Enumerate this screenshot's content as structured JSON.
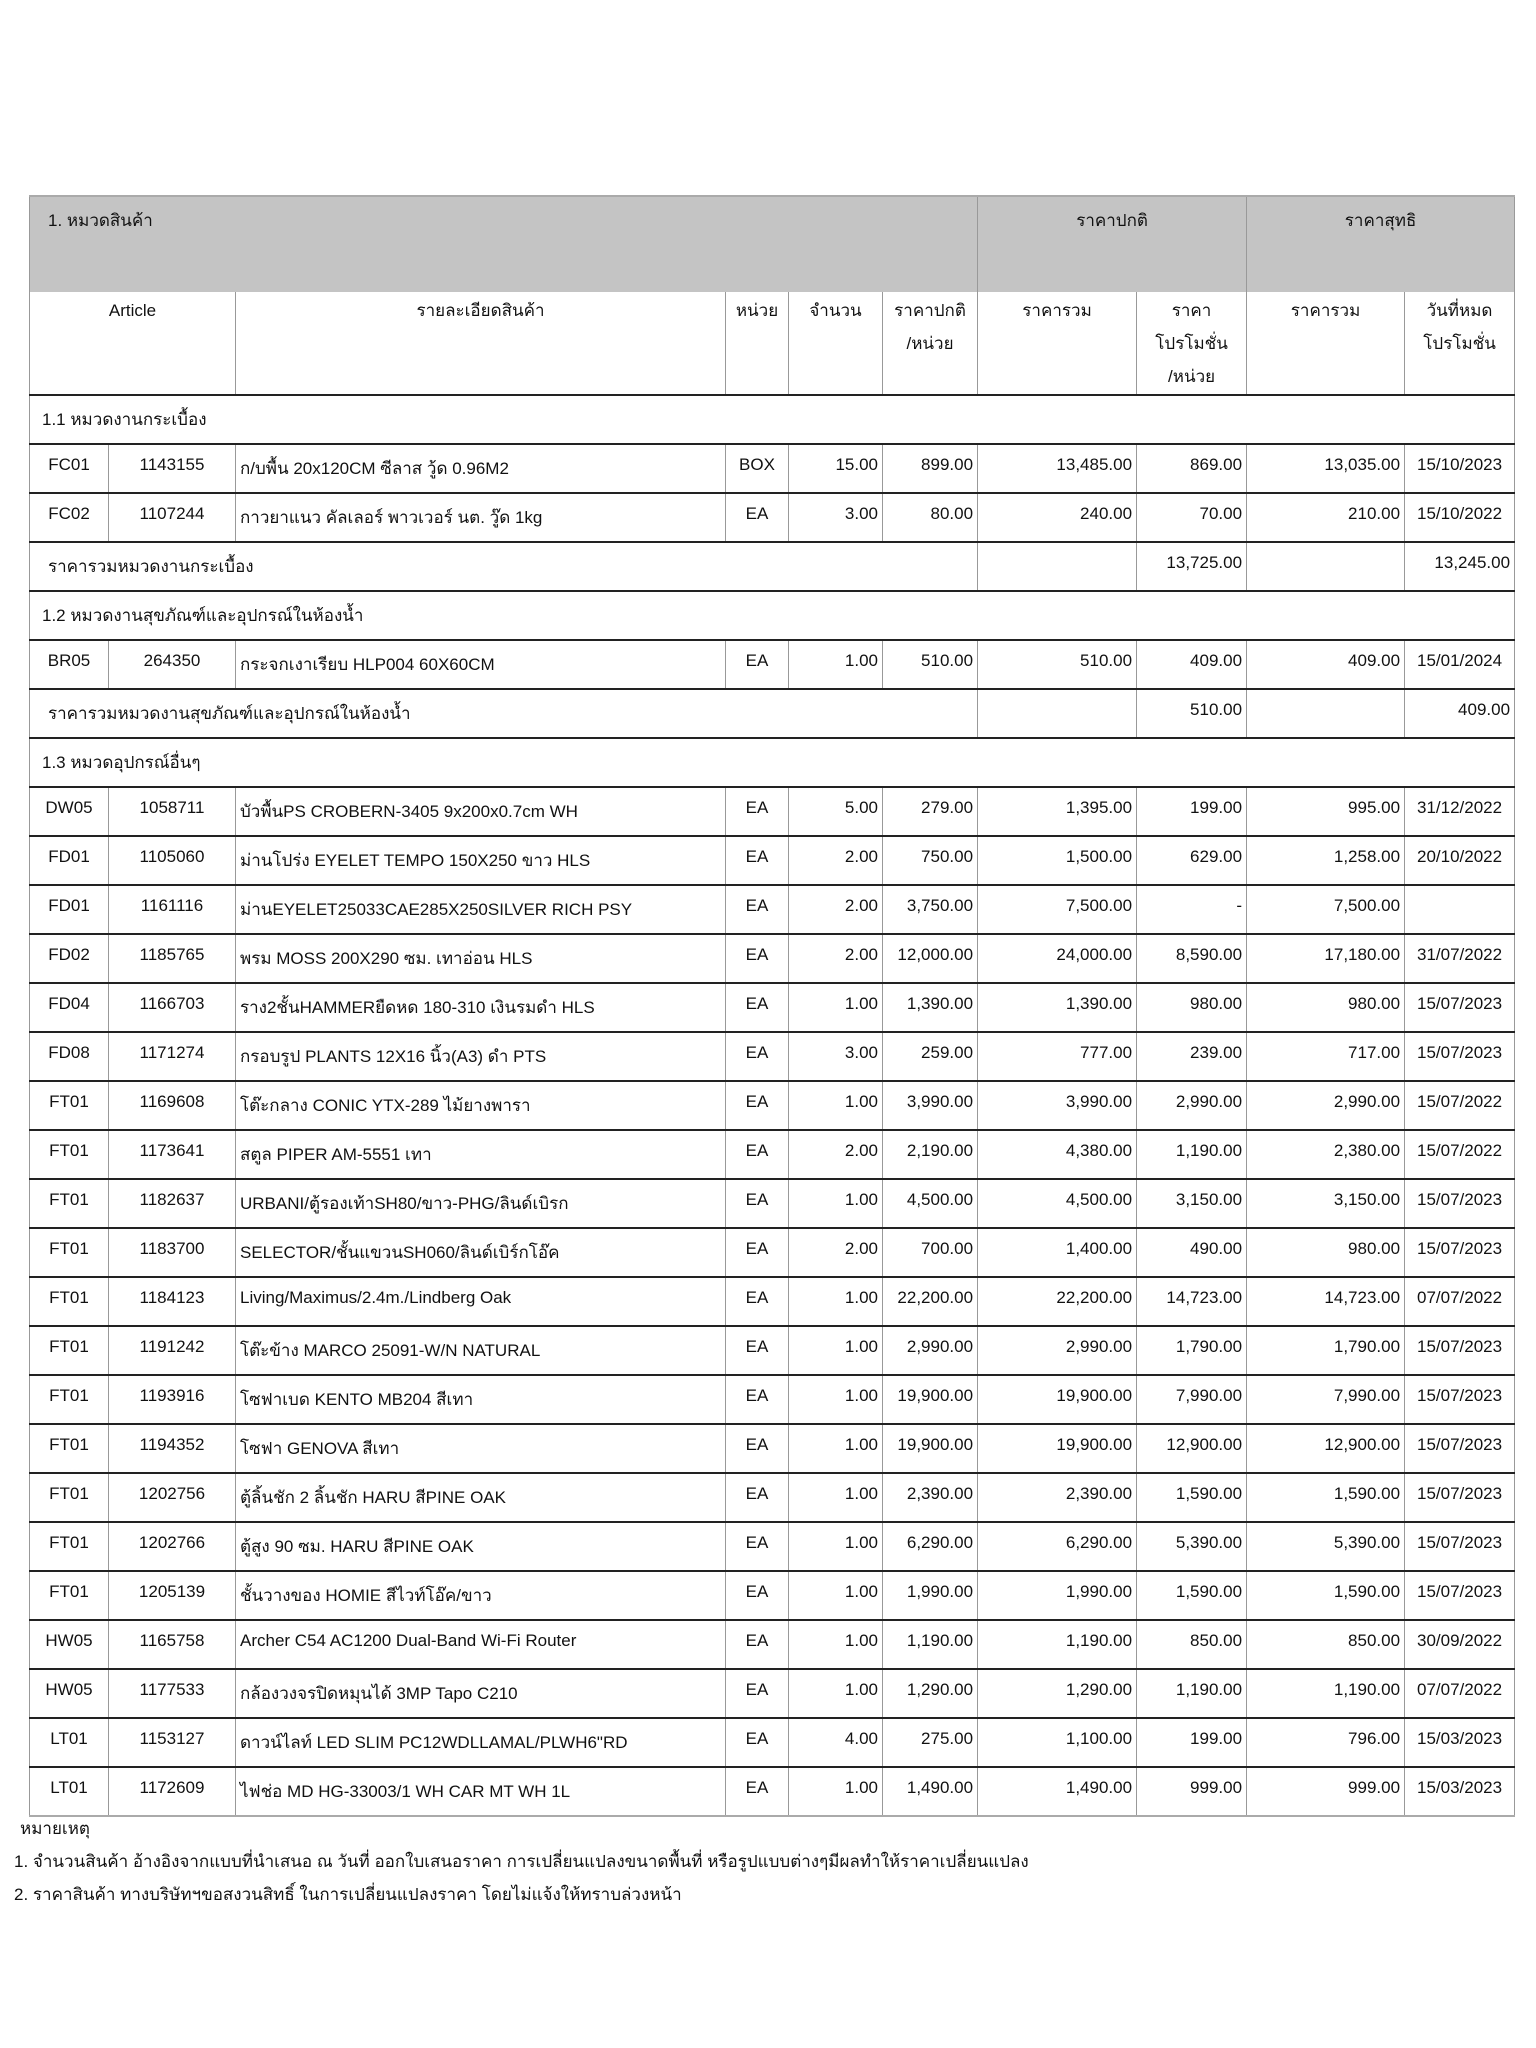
{
  "header": {
    "category_title": "1. หมวดสินค้า",
    "regular_price_group": "ราคาปกติ",
    "net_price_group": "ราคาสุทธิ"
  },
  "columns": {
    "article": "Article",
    "description": "รายละเอียดสินค้า",
    "unit": "หน่วย",
    "qty": "จำนวน",
    "unit_price": [
      "ราคาปกติ",
      "/หน่วย"
    ],
    "total": "ราคารวม",
    "promo_price": [
      "ราคา",
      "โปรโมชั่น",
      "/หน่วย"
    ],
    "net_total": "ราคารวม",
    "promo_end": [
      "วันที่หมด",
      "โปรโมชั่น"
    ]
  },
  "sections": [
    {
      "title": "1.1 หมวดงานกระเบื้อง",
      "items": [
        [
          "FC01",
          "1143155",
          "ก/บพื้น 20x120CM ซีลาส วู้ด 0.96M2",
          "BOX",
          "15.00",
          "899.00",
          "13,485.00",
          "869.00",
          "13,035.00",
          "15/10/2023"
        ],
        [
          "FC02",
          "1107244",
          "กาวยาแนว คัลเลอร์ พาวเวอร์ นต. วู๊ด 1kg",
          "EA",
          "3.00",
          "80.00",
          "240.00",
          "70.00",
          "210.00",
          "15/10/2022"
        ]
      ],
      "subtotal": {
        "label": "ราคารวมหมวดงานกระเบื้อง",
        "total": "13,725.00",
        "net_total": "13,245.00"
      }
    },
    {
      "title": "1.2 หมวดงานสุขภัณฑ์และอุปกรณ์ในห้องน้ำ",
      "items": [
        [
          "BR05",
          "264350",
          "กระจกเงาเรียบ HLP004 60X60CM",
          "EA",
          "1.00",
          "510.00",
          "510.00",
          "409.00",
          "409.00",
          "15/01/2024"
        ]
      ],
      "subtotal": {
        "label": "ราคารวมหมวดงานสุขภัณฑ์และอุปกรณ์ในห้องน้ำ",
        "total": "510.00",
        "net_total": "409.00"
      }
    },
    {
      "title": "1.3 หมวดอุปกรณ์อื่นๆ",
      "items": [
        [
          "DW05",
          "1058711",
          "บัวพื้นPS CROBERN-3405 9x200x0.7cm WH",
          "EA",
          "5.00",
          "279.00",
          "1,395.00",
          "199.00",
          "995.00",
          "31/12/2022"
        ],
        [
          "FD01",
          "1105060",
          "ม่านโปร่ง EYELET TEMPO 150X250 ขาว HLS",
          "EA",
          "2.00",
          "750.00",
          "1,500.00",
          "629.00",
          "1,258.00",
          "20/10/2022"
        ],
        [
          "FD01",
          "1161116",
          "ม่านEYELET25033CAE285X250SILVER RICH PSY",
          "EA",
          "2.00",
          "3,750.00",
          "7,500.00",
          "-",
          "7,500.00",
          ""
        ],
        [
          "FD02",
          "1185765",
          "พรม MOSS 200X290 ซม. เทาอ่อน HLS",
          "EA",
          "2.00",
          "12,000.00",
          "24,000.00",
          "8,590.00",
          "17,180.00",
          "31/07/2022"
        ],
        [
          "FD04",
          "1166703",
          "ราง2ชั้นHAMMERยืดหด 180-310 เงินรมดำ HLS",
          "EA",
          "1.00",
          "1,390.00",
          "1,390.00",
          "980.00",
          "980.00",
          "15/07/2023"
        ],
        [
          "FD08",
          "1171274",
          "กรอบรูป PLANTS 12X16 นิ้ว(A3) ดำ PTS",
          "EA",
          "3.00",
          "259.00",
          "777.00",
          "239.00",
          "717.00",
          "15/07/2023"
        ],
        [
          "FT01",
          "1169608",
          "โต๊ะกลาง CONIC YTX-289 ไม้ยางพารา",
          "EA",
          "1.00",
          "3,990.00",
          "3,990.00",
          "2,990.00",
          "2,990.00",
          "15/07/2022"
        ],
        [
          "FT01",
          "1173641",
          "สตูล PIPER AM-5551 เทา",
          "EA",
          "2.00",
          "2,190.00",
          "4,380.00",
          "1,190.00",
          "2,380.00",
          "15/07/2022"
        ],
        [
          "FT01",
          "1182637",
          "URBANI/ตู้รองเท้าSH80/ขาว-PHG/ลินด์เบิรก",
          "EA",
          "1.00",
          "4,500.00",
          "4,500.00",
          "3,150.00",
          "3,150.00",
          "15/07/2023"
        ],
        [
          "FT01",
          "1183700",
          "SELECTOR/ชั้นแขวนSH060/ลินด์เบิร์กโอ๊ค",
          "EA",
          "2.00",
          "700.00",
          "1,400.00",
          "490.00",
          "980.00",
          "15/07/2023"
        ],
        [
          "FT01",
          "1184123",
          "Living/Maximus/2.4m./Lindberg Oak",
          "EA",
          "1.00",
          "22,200.00",
          "22,200.00",
          "14,723.00",
          "14,723.00",
          "07/07/2022"
        ],
        [
          "FT01",
          "1191242",
          "โต๊ะข้าง MARCO 25091-W/N  NATURAL",
          "EA",
          "1.00",
          "2,990.00",
          "2,990.00",
          "1,790.00",
          "1,790.00",
          "15/07/2023"
        ],
        [
          "FT01",
          "1193916",
          "โซฟาเบด KENTO MB204 สีเทา",
          "EA",
          "1.00",
          "19,900.00",
          "19,900.00",
          "7,990.00",
          "7,990.00",
          "15/07/2023"
        ],
        [
          "FT01",
          "1194352",
          "โซฟา GENOVA สีเทา",
          "EA",
          "1.00",
          "19,900.00",
          "19,900.00",
          "12,900.00",
          "12,900.00",
          "15/07/2023"
        ],
        [
          "FT01",
          "1202756",
          "ตู้ลิ้นชัก 2 ลิ้นชัก HARU สีPINE OAK",
          "EA",
          "1.00",
          "2,390.00",
          "2,390.00",
          "1,590.00",
          "1,590.00",
          "15/07/2023"
        ],
        [
          "FT01",
          "1202766",
          "ตู้สูง 90 ซม. HARU สีPINE OAK",
          "EA",
          "1.00",
          "6,290.00",
          "6,290.00",
          "5,390.00",
          "5,390.00",
          "15/07/2023"
        ],
        [
          "FT01",
          "1205139",
          "ชั้นวางของ HOMIE สีไวท์โอ๊ค/ขาว",
          "EA",
          "1.00",
          "1,990.00",
          "1,990.00",
          "1,590.00",
          "1,590.00",
          "15/07/2023"
        ],
        [
          "HW05",
          "1165758",
          "Archer C54 AC1200 Dual-Band Wi-Fi Router",
          "EA",
          "1.00",
          "1,190.00",
          "1,190.00",
          "850.00",
          "850.00",
          "30/09/2022"
        ],
        [
          "HW05",
          "1177533",
          "กล้องวงจรปิดหมุนได้ 3MP Tapo C210",
          "EA",
          "1.00",
          "1,290.00",
          "1,290.00",
          "1,190.00",
          "1,190.00",
          "07/07/2022"
        ],
        [
          "LT01",
          "1153127",
          "ดาวน์ไลท์ LED SLIM PC12WDLLAMAL/PLWH6\"RD",
          "EA",
          "4.00",
          "275.00",
          "1,100.00",
          "199.00",
          "796.00",
          "15/03/2023"
        ],
        [
          "LT01",
          "1172609",
          "ไฟช่อ MD HG-33003/1 WH CAR MT WH 1L",
          "EA",
          "1.00",
          "1,490.00",
          "1,490.00",
          "999.00",
          "999.00",
          "15/03/2023"
        ]
      ]
    }
  ],
  "notes": {
    "title": "หมายเหตุ",
    "lines": [
      "1. จำนวนสินค้า อ้างอิงจากแบบที่นำเสนอ ณ วันที่ ออกใบเสนอราคา การเปลี่ยนแปลงขนาดพื้นที่ หรือรูปแบบต่างๆมีผลทำให้ราคาเปลี่ยนแปลง",
      "2. ราคาสินค้า ทางบริษัทฯขอสงวนสิทธิ์ ในการเปลี่ยนแปลงราคา โดยไม่แจ้งให้ทราบล่วงหน้า"
    ]
  }
}
